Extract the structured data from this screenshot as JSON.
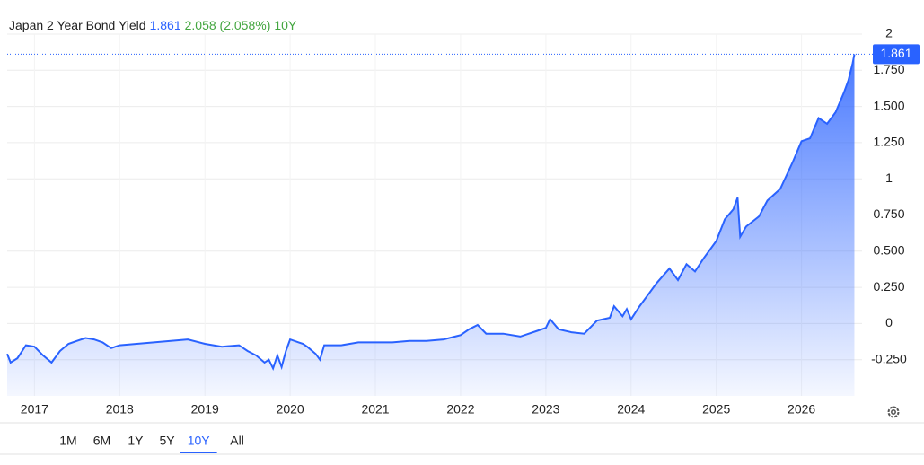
{
  "chart_data": {
    "type": "area",
    "title": "Japan 2 Year Bond Yield",
    "last_value": 1.861,
    "change": "2.058 (2.058%)",
    "period": "10Y",
    "ranges": [
      "1M",
      "6M",
      "1Y",
      "5Y",
      "10Y",
      "All"
    ],
    "color": "#2962ff",
    "grid": true,
    "xlim": [
      2016.68,
      2026.71
    ],
    "xticks": [
      2017,
      2018,
      2019,
      2020,
      2021,
      2022,
      2023,
      2024,
      2025,
      2026
    ],
    "ylim": [
      -0.5,
      2
    ],
    "yticks": [
      2,
      {
        "value": 1.75,
        "label": "1.750"
      },
      {
        "value": 1.5,
        "label": "1.500"
      },
      {
        "value": 1.25,
        "label": "1.250"
      },
      1,
      {
        "value": 0.75,
        "label": "0.750"
      },
      {
        "value": 0.5,
        "label": "0.500"
      },
      {
        "value": 0.25,
        "label": "0.250"
      },
      0,
      {
        "value": -0.25,
        "label": "-0.250"
      }
    ],
    "x": [
      2016.68,
      2016.72,
      2016.8,
      2016.9,
      2017.0,
      2017.1,
      2017.2,
      2017.3,
      2017.4,
      2017.5,
      2017.6,
      2017.7,
      2017.8,
      2017.9,
      2018.0,
      2018.2,
      2018.4,
      2018.6,
      2018.8,
      2019.0,
      2019.2,
      2019.4,
      2019.5,
      2019.6,
      2019.7,
      2019.75,
      2019.8,
      2019.85,
      2019.9,
      2019.95,
      2020.0,
      2020.1,
      2020.15,
      2020.2,
      2020.3,
      2020.35,
      2020.4,
      2020.6,
      2020.8,
      2021.0,
      2021.2,
      2021.4,
      2021.6,
      2021.8,
      2022.0,
      2022.1,
      2022.2,
      2022.3,
      2022.5,
      2022.7,
      2022.9,
      2023.0,
      2023.05,
      2023.15,
      2023.3,
      2023.45,
      2023.6,
      2023.75,
      2023.8,
      2023.9,
      2023.95,
      2024.0,
      2024.1,
      2024.2,
      2024.3,
      2024.45,
      2024.55,
      2024.65,
      2024.75,
      2024.85,
      2025.0,
      2025.1,
      2025.2,
      2025.25,
      2025.28,
      2025.35,
      2025.5,
      2025.6,
      2025.75,
      2025.9,
      2026.0,
      2026.1,
      2026.2,
      2026.3,
      2026.4,
      2026.5,
      2026.55,
      2026.6,
      2026.62
    ],
    "values": [
      -0.21,
      -0.27,
      -0.24,
      -0.15,
      -0.16,
      -0.22,
      -0.27,
      -0.19,
      -0.14,
      -0.12,
      -0.1,
      -0.11,
      -0.13,
      -0.17,
      -0.15,
      -0.14,
      -0.13,
      -0.12,
      -0.11,
      -0.14,
      -0.16,
      -0.15,
      -0.19,
      -0.22,
      -0.27,
      -0.25,
      -0.31,
      -0.22,
      -0.3,
      -0.19,
      -0.11,
      -0.13,
      -0.14,
      -0.16,
      -0.21,
      -0.25,
      -0.15,
      -0.15,
      -0.13,
      -0.13,
      -0.13,
      -0.12,
      -0.12,
      -0.11,
      -0.08,
      -0.04,
      -0.01,
      -0.07,
      -0.07,
      -0.09,
      -0.05,
      -0.03,
      0.03,
      -0.04,
      -0.06,
      -0.07,
      0.02,
      0.04,
      0.12,
      0.05,
      0.1,
      0.03,
      0.12,
      0.2,
      0.28,
      0.38,
      0.3,
      0.41,
      0.36,
      0.45,
      0.57,
      0.72,
      0.79,
      0.87,
      0.6,
      0.67,
      0.74,
      0.85,
      0.93,
      1.12,
      1.26,
      1.28,
      1.42,
      1.38,
      1.46,
      1.6,
      1.68,
      1.8,
      1.861
    ]
  }
}
